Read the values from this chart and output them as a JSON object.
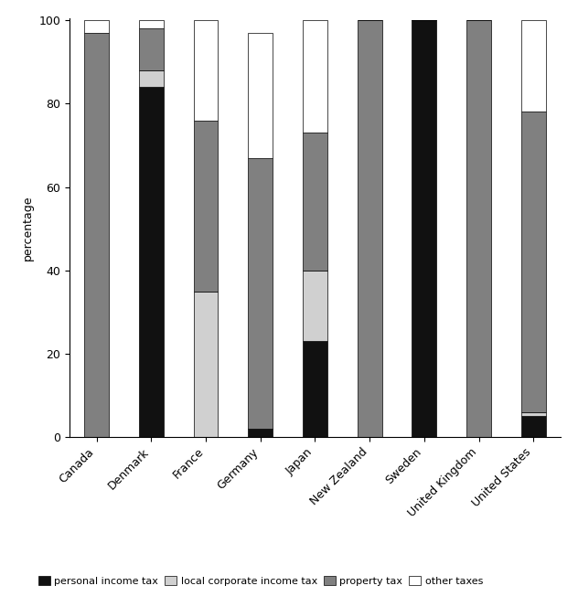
{
  "countries": [
    "Canada",
    "Denmark",
    "France",
    "Germany",
    "Japan",
    "New Zealand",
    "Sweden",
    "United Kingdom",
    "United States"
  ],
  "personal_income_tax": [
    0,
    84,
    0,
    2,
    23,
    0,
    100,
    0,
    5
  ],
  "local_corporate_income_tax": [
    0,
    4,
    35,
    0,
    17,
    0,
    0,
    0,
    1
  ],
  "property_tax": [
    97,
    10,
    41,
    65,
    33,
    100,
    0,
    100,
    72
  ],
  "other_taxes": [
    3,
    2,
    24,
    30,
    27,
    0,
    0,
    0,
    22
  ],
  "colors": {
    "personal_income_tax": "#111111",
    "local_corporate_income_tax": "#d0d0d0",
    "property_tax": "#808080",
    "other_taxes": "#ffffff"
  },
  "ylabel": "percentage",
  "ylim": [
    0,
    100
  ],
  "legend_labels": [
    "personal income tax",
    "local corporate income tax",
    "property tax",
    "other taxes"
  ],
  "bar_width": 0.45,
  "figsize": [
    6.32,
    6.64
  ],
  "dpi": 100
}
